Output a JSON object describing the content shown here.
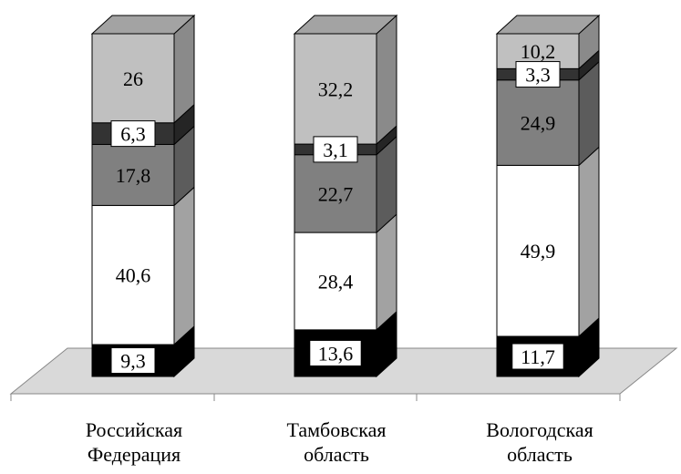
{
  "chart_data": {
    "type": "bar",
    "stacked": true,
    "style": "3d",
    "grid": false,
    "legend": "none",
    "ylim": [
      0,
      100
    ],
    "categories": [
      [
        "Российская",
        "Федерация"
      ],
      [
        "Тамбовская",
        "область"
      ],
      [
        "Вологодская",
        "область"
      ]
    ],
    "series": [
      {
        "color": "#000000",
        "values": [
          9.3,
          13.6,
          11.7
        ],
        "labels": [
          "9,3",
          "13,6",
          "11,7"
        ]
      },
      {
        "color": "#ffffff",
        "values": [
          40.6,
          28.4,
          49.9
        ],
        "labels": [
          "40,6",
          "28,4",
          "49,9"
        ]
      },
      {
        "color": "#808080",
        "values": [
          17.8,
          22.7,
          24.9
        ],
        "labels": [
          "17,8",
          "22,7",
          "24,9"
        ]
      },
      {
        "color": "#333333",
        "values": [
          6.3,
          3.1,
          3.3
        ],
        "labels": [
          "6,3",
          "3,1",
          "3,3"
        ]
      },
      {
        "color": "#c0c0c0",
        "values": [
          26,
          32.2,
          10.2
        ],
        "labels": [
          "26",
          "32,2",
          "10,2"
        ]
      }
    ]
  }
}
